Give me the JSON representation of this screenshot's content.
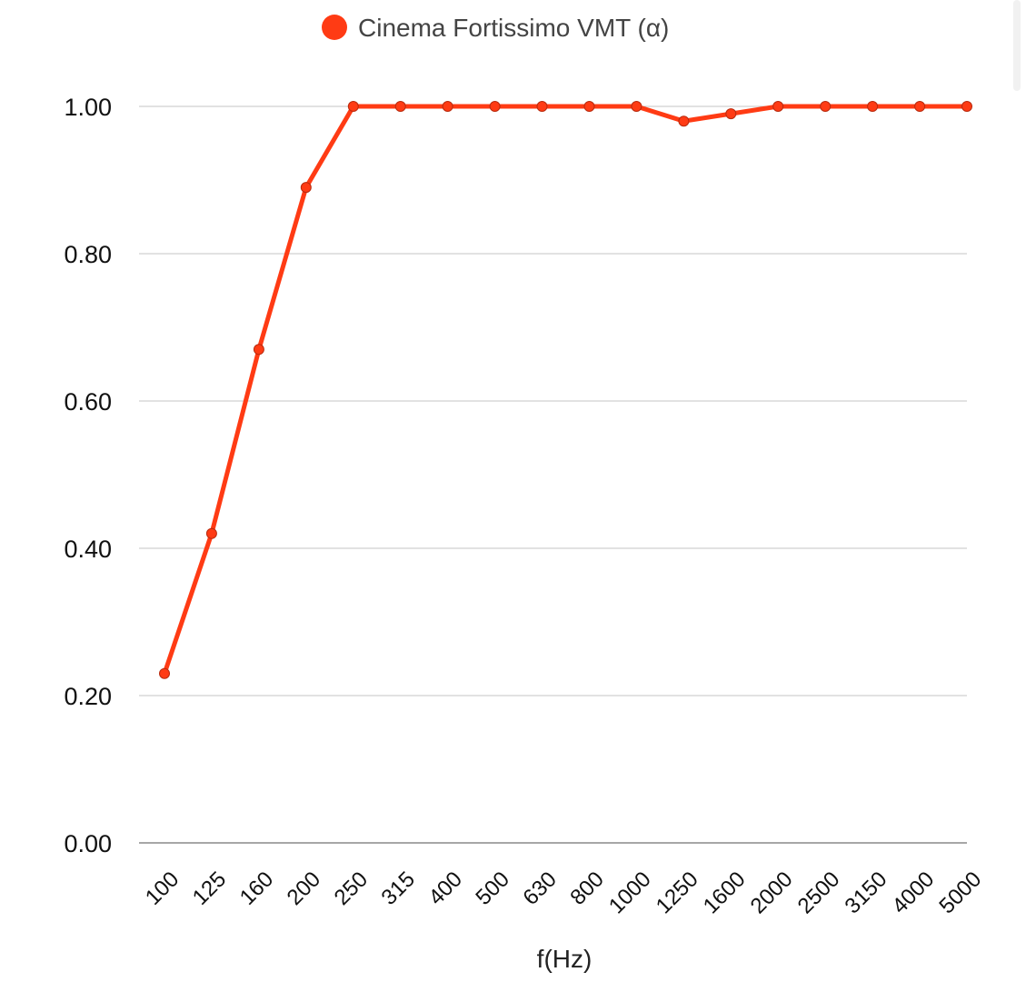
{
  "chart_data": {
    "type": "line",
    "categories": [
      "100",
      "125",
      "160",
      "200",
      "250",
      "315",
      "400",
      "500",
      "630",
      "800",
      "1000",
      "1250",
      "1600",
      "2000",
      "2500",
      "3150",
      "4000",
      "5000"
    ],
    "series": [
      {
        "name": "Cinema Fortissimo VMT (α)",
        "values": [
          0.23,
          0.42,
          0.67,
          0.89,
          1.0,
          1.0,
          1.0,
          1.0,
          1.0,
          1.0,
          1.0,
          0.98,
          0.99,
          1.0,
          1.0,
          1.0,
          1.0,
          1.0
        ],
        "color": "#ff3b14"
      }
    ],
    "xlabel": "f(Hz)",
    "ylabel": "",
    "ylim": [
      0,
      1
    ],
    "yticks": [
      "0.00",
      "0.20",
      "0.40",
      "0.60",
      "0.80",
      "1.00"
    ],
    "ytick_values": [
      0,
      0.2,
      0.4,
      0.6,
      0.8,
      1.0
    ],
    "grid": true,
    "legend": "top-center"
  }
}
